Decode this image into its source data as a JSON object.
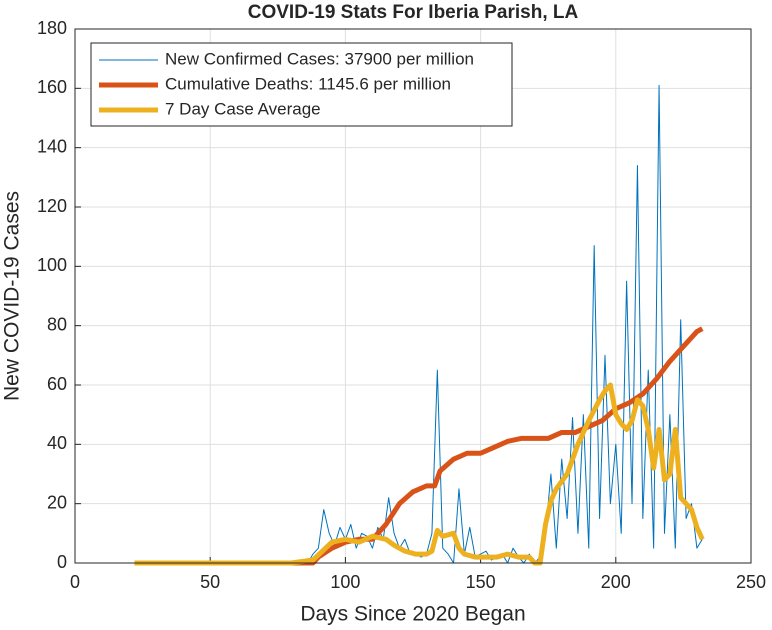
{
  "chart_data": {
    "type": "line",
    "title": "COVID-19 Stats For Iberia Parish, LA",
    "xlabel": "Days Since 2020 Began",
    "ylabel": "New COVID-19 Cases",
    "xlim": [
      0,
      250
    ],
    "xticks": [
      0,
      50,
      100,
      150,
      200,
      250
    ],
    "ylim": [
      0,
      180
    ],
    "yticks": [
      0,
      20,
      40,
      60,
      80,
      100,
      120,
      140,
      160,
      180
    ],
    "grid": true,
    "legend": "upper left",
    "series": [
      {
        "name": "New Confirmed Cases: 37900 per million",
        "color": "#0072bd",
        "width": 1,
        "x": [
          22,
          86,
          88,
          90,
          92,
          94,
          96,
          98,
          100,
          102,
          104,
          106,
          108,
          110,
          112,
          114,
          116,
          118,
          120,
          122,
          124,
          126,
          128,
          130,
          132,
          134,
          136,
          138,
          140,
          142,
          144,
          146,
          148,
          150,
          152,
          154,
          156,
          158,
          160,
          162,
          164,
          166,
          168,
          170,
          172,
          174,
          176,
          178,
          180,
          182,
          184,
          186,
          188,
          190,
          192,
          194,
          196,
          198,
          200,
          202,
          204,
          206,
          208,
          210,
          212,
          214,
          216,
          218,
          220,
          222,
          224,
          226,
          228,
          230,
          232
        ],
        "values": [
          0,
          0,
          3,
          5,
          18,
          10,
          6,
          12,
          8,
          13,
          5,
          10,
          9,
          5,
          12,
          8,
          22,
          10,
          5,
          8,
          3,
          3,
          2,
          3,
          10,
          65,
          5,
          3,
          0,
          25,
          3,
          12,
          2,
          3,
          4,
          1,
          2,
          3,
          0,
          5,
          2,
          0,
          3,
          0,
          2,
          10,
          30,
          5,
          35,
          15,
          49,
          10,
          50,
          5,
          107,
          15,
          70,
          20,
          40,
          10,
          95,
          20,
          134,
          15,
          65,
          5,
          161,
          10,
          50,
          5,
          82,
          15,
          20,
          5,
          8
        ]
      },
      {
        "name": "Cumulative Deaths: 1145.6 per million",
        "color": "#d95319",
        "width": 5,
        "x": [
          22,
          88,
          90,
          95,
          100,
          105,
          110,
          115,
          120,
          125,
          130,
          133,
          135,
          140,
          145,
          150,
          155,
          160,
          165,
          170,
          175,
          180,
          185,
          190,
          195,
          200,
          205,
          210,
          215,
          220,
          225,
          230,
          232
        ],
        "values": [
          0,
          0,
          2,
          5,
          7,
          8,
          8,
          13,
          20,
          24,
          26,
          26,
          31,
          35,
          37,
          37,
          39,
          41,
          42,
          42,
          42,
          44,
          44,
          46,
          48,
          52,
          54,
          57,
          62,
          68,
          73,
          78,
          79
        ]
      },
      {
        "name": "7 Day Case Average",
        "color": "#edb120",
        "width": 5,
        "x": [
          22,
          80,
          88,
          95,
          100,
          105,
          110,
          115,
          118,
          122,
          126,
          130,
          132,
          134,
          136,
          140,
          142,
          144,
          148,
          152,
          156,
          160,
          164,
          168,
          170,
          172,
          174,
          176,
          178,
          182,
          186,
          190,
          194,
          196,
          198,
          200,
          202,
          204,
          206,
          208,
          210,
          212,
          214,
          216,
          218,
          220,
          222,
          224,
          226,
          228,
          230,
          232
        ],
        "values": [
          0,
          0,
          1,
          7,
          8,
          7,
          9,
          8,
          6,
          4,
          3,
          3,
          4,
          11,
          9,
          10,
          5,
          3,
          2,
          2,
          2,
          3,
          2,
          2,
          0,
          0,
          13,
          21,
          25,
          30,
          40,
          48,
          55,
          58,
          60,
          50,
          47,
          45,
          48,
          55,
          53,
          45,
          32,
          45,
          28,
          30,
          45,
          22,
          20,
          18,
          12,
          8
        ]
      }
    ]
  }
}
